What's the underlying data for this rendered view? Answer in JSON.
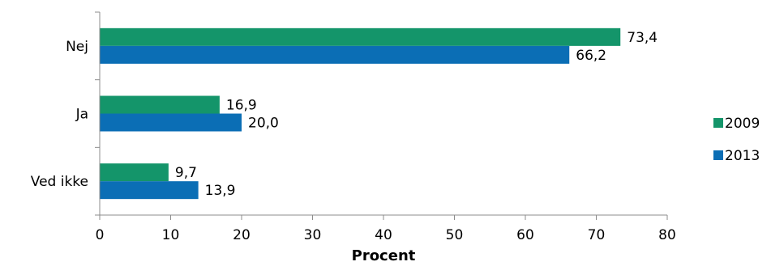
{
  "chart_data": {
    "type": "bar",
    "orientation": "horizontal",
    "categories": [
      "Nej",
      "Ja",
      "Ved ikke"
    ],
    "series": [
      {
        "name": "2009",
        "values": [
          73.4,
          16.9,
          9.7
        ],
        "labels": [
          "73,4",
          "16,9",
          "9,7"
        ],
        "color": "#14956A"
      },
      {
        "name": "2013",
        "values": [
          66.2,
          20.0,
          13.9
        ],
        "labels": [
          "66,2",
          "20,0",
          "13,9"
        ],
        "color": "#0B6EB5"
      }
    ],
    "xlabel": "Procent",
    "ylabel": "",
    "xlim": [
      0,
      80
    ],
    "xticks": [
      0,
      10,
      20,
      30,
      40,
      50,
      60,
      70,
      80
    ],
    "grid": false,
    "legend_position": "right"
  }
}
